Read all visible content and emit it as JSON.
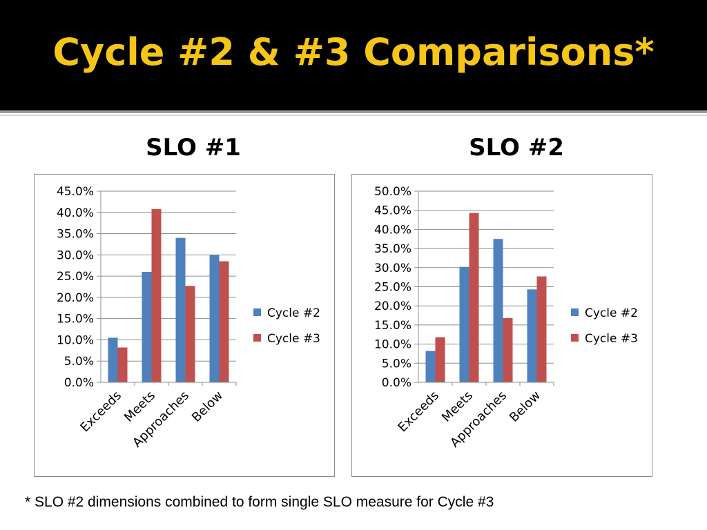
{
  "slide": {
    "title": "Cycle #2 & #3 Comparisons*",
    "footnote": "* SLO #2 dimensions combined to form single SLO measure for Cycle #3"
  },
  "colors": {
    "title": "#f5c518",
    "cycle2": "#4f81bd",
    "cycle3": "#c0504d"
  },
  "chart_data": [
    {
      "type": "bar",
      "title": "SLO #1",
      "categories": [
        "Exceeds",
        "Meets",
        "Approaches",
        "Below"
      ],
      "series": [
        {
          "name": "Cycle #2",
          "values": [
            10.5,
            26.0,
            34.0,
            30.0
          ]
        },
        {
          "name": "Cycle #3",
          "values": [
            8.2,
            40.8,
            22.7,
            28.5
          ]
        }
      ],
      "ylim": [
        0,
        45
      ],
      "ytick_step": 5,
      "yticks": [
        "0.0%",
        "5.0%",
        "10.0%",
        "15.0%",
        "20.0%",
        "25.0%",
        "30.0%",
        "35.0%",
        "40.0%",
        "45.0%"
      ],
      "grid": true,
      "legend": "right"
    },
    {
      "type": "bar",
      "title": "SLO #2",
      "categories": [
        "Exceeds",
        "Meets",
        "Approaches",
        "Below"
      ],
      "series": [
        {
          "name": "Cycle #2",
          "values": [
            8.2,
            30.2,
            37.5,
            24.3
          ]
        },
        {
          "name": "Cycle #3",
          "values": [
            11.8,
            44.3,
            16.8,
            27.7
          ]
        }
      ],
      "ylim": [
        0,
        50
      ],
      "ytick_step": 5,
      "yticks": [
        "0.0%",
        "5.0%",
        "10.0%",
        "15.0%",
        "20.0%",
        "25.0%",
        "30.0%",
        "35.0%",
        "40.0%",
        "45.0%",
        "50.0%"
      ],
      "grid": true,
      "legend": "right"
    }
  ]
}
